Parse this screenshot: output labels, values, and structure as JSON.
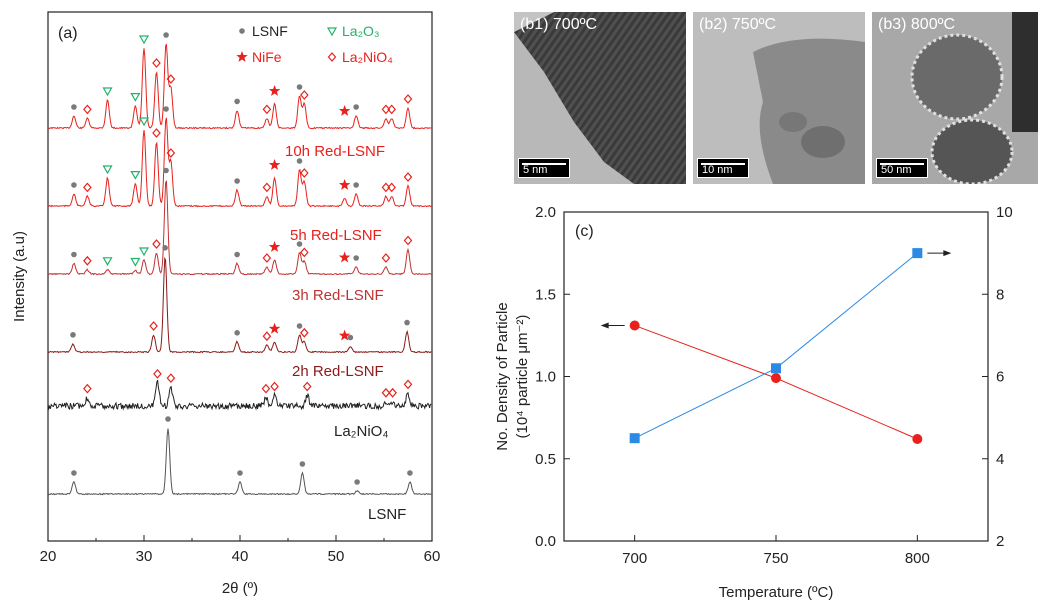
{
  "panel_b": [
    {
      "label": "(b1) 700ºC",
      "scale": "5 nm"
    },
    {
      "label": "(b2) 750ºC",
      "scale": "10 nm"
    },
    {
      "label": "(b3) 800ºC",
      "scale": "50 nm"
    }
  ],
  "colors": {
    "red": "#e8211c",
    "blue": "#2a8ae6",
    "green": "#22b26a",
    "grey": "#7a7a7a",
    "dark_red": "#8b1a1a",
    "black": "#222222"
  },
  "chart_data": [
    {
      "type": "line",
      "panel_label": "(a)",
      "xlabel": "2θ (º)",
      "ylabel": "Intensity (a.u)",
      "xlim": [
        20,
        60
      ],
      "xticks": [
        "20",
        "30",
        "40",
        "50",
        "60"
      ],
      "legend": {
        "placement": "top-right",
        "entries": [
          {
            "marker": "dot",
            "text": "LSNF"
          },
          {
            "marker": "triangle",
            "text": "La₂O₃"
          },
          {
            "marker": "star",
            "text": "NiFe"
          },
          {
            "marker": "diamond",
            "text": "La₂NiO₄"
          }
        ]
      },
      "series": [
        {
          "name": "10h Red-LSNF",
          "color": "#e8211c",
          "offset": 6,
          "peaks": [
            [
              22.7,
              0.15
            ],
            [
              24.1,
              0.12
            ],
            [
              26.2,
              0.35
            ],
            [
              29.1,
              0.28
            ],
            [
              30.0,
              1.0
            ],
            [
              31.3,
              0.7
            ],
            [
              32.3,
              1.05
            ],
            [
              32.8,
              0.5
            ],
            [
              39.7,
              0.22
            ],
            [
              42.8,
              0.12
            ],
            [
              43.6,
              0.3
            ],
            [
              46.2,
              0.4
            ],
            [
              46.7,
              0.3
            ],
            [
              52.1,
              0.15
            ],
            [
              55.2,
              0.12
            ],
            [
              55.8,
              0.12
            ],
            [
              57.5,
              0.25
            ]
          ],
          "markers": [
            [
              "dot",
              22.7
            ],
            [
              "diamond",
              24.1
            ],
            [
              "triangle",
              26.2
            ],
            [
              "triangle",
              29.1
            ],
            [
              "triangle",
              30.0
            ],
            [
              "diamond",
              31.3
            ],
            [
              "dot",
              32.3
            ],
            [
              "diamond",
              32.8
            ],
            [
              "dot",
              39.7
            ],
            [
              "diamond",
              42.8
            ],
            [
              "star",
              43.6
            ],
            [
              "dot",
              46.2
            ],
            [
              "diamond",
              46.7
            ],
            [
              "star",
              50.9
            ],
            [
              "dot",
              52.1
            ],
            [
              "diamond",
              55.2
            ],
            [
              "diamond",
              55.8
            ],
            [
              "diamond",
              57.5
            ]
          ]
        },
        {
          "name": "5h Red-LSNF",
          "color": "#e8211c",
          "offset": 5,
          "peaks": [
            [
              22.7,
              0.15
            ],
            [
              24.1,
              0.12
            ],
            [
              26.2,
              0.35
            ],
            [
              29.1,
              0.28
            ],
            [
              30.0,
              0.95
            ],
            [
              31.3,
              0.8
            ],
            [
              32.3,
              1.1
            ],
            [
              32.8,
              0.55
            ],
            [
              39.7,
              0.2
            ],
            [
              42.8,
              0.12
            ],
            [
              43.6,
              0.35
            ],
            [
              46.2,
              0.45
            ],
            [
              46.7,
              0.3
            ],
            [
              50.9,
              0.1
            ],
            [
              52.1,
              0.15
            ],
            [
              55.2,
              0.12
            ],
            [
              55.8,
              0.12
            ],
            [
              57.5,
              0.25
            ]
          ],
          "markers": [
            [
              "dot",
              22.7
            ],
            [
              "diamond",
              24.1
            ],
            [
              "triangle",
              26.2
            ],
            [
              "triangle",
              29.1
            ],
            [
              "triangle",
              30.0
            ],
            [
              "diamond",
              31.3
            ],
            [
              "dot",
              32.3
            ],
            [
              "diamond",
              32.8
            ],
            [
              "dot",
              39.7
            ],
            [
              "diamond",
              42.8
            ],
            [
              "star",
              43.6
            ],
            [
              "dot",
              46.2
            ],
            [
              "diamond",
              46.7
            ],
            [
              "star",
              50.9
            ],
            [
              "dot",
              52.1
            ],
            [
              "diamond",
              55.2
            ],
            [
              "diamond",
              55.8
            ],
            [
              "diamond",
              57.5
            ]
          ]
        },
        {
          "name": "3h Red-LSNF",
          "color": "#c23131",
          "offset": 4,
          "peaks": [
            [
              22.7,
              0.15
            ],
            [
              24.1,
              0.06
            ],
            [
              26.2,
              0.06
            ],
            [
              29.1,
              0.05
            ],
            [
              30.0,
              0.2
            ],
            [
              31.3,
              0.3
            ],
            [
              32.3,
              1.35
            ],
            [
              39.7,
              0.15
            ],
            [
              42.8,
              0.1
            ],
            [
              43.6,
              0.2
            ],
            [
              46.2,
              0.3
            ],
            [
              46.7,
              0.18
            ],
            [
              52.1,
              0.1
            ],
            [
              55.2,
              0.1
            ],
            [
              57.5,
              0.35
            ]
          ],
          "markers": [
            [
              "dot",
              22.7
            ],
            [
              "diamond",
              24.1
            ],
            [
              "triangle",
              26.2
            ],
            [
              "triangle",
              29.1
            ],
            [
              "triangle",
              30.0
            ],
            [
              "diamond",
              31.3
            ],
            [
              "dot",
              32.3
            ],
            [
              "dot",
              39.7
            ],
            [
              "diamond",
              42.8
            ],
            [
              "star",
              43.6
            ],
            [
              "dot",
              46.2
            ],
            [
              "diamond",
              46.7
            ],
            [
              "star",
              50.9
            ],
            [
              "dot",
              52.1
            ],
            [
              "diamond",
              55.2
            ],
            [
              "diamond",
              57.5
            ]
          ]
        },
        {
          "name": "2h Red-LSNF",
          "color": "#8b1a1a",
          "offset": 3,
          "peaks": [
            [
              22.6,
              0.12
            ],
            [
              31.0,
              0.25
            ],
            [
              32.2,
              1.4
            ],
            [
              39.7,
              0.15
            ],
            [
              42.8,
              0.1
            ],
            [
              43.6,
              0.15
            ],
            [
              46.2,
              0.25
            ],
            [
              46.7,
              0.15
            ],
            [
              51.5,
              0.08
            ],
            [
              57.4,
              0.3
            ]
          ],
          "markers": [
            [
              "dot",
              22.6
            ],
            [
              "diamond",
              31.0
            ],
            [
              "dot",
              32.2
            ],
            [
              "dot",
              39.7
            ],
            [
              "diamond",
              42.8
            ],
            [
              "star",
              43.6
            ],
            [
              "dot",
              46.2
            ],
            [
              "diamond",
              46.7
            ],
            [
              "star",
              50.9
            ],
            [
              "dot",
              51.5
            ],
            [
              "dot",
              57.4
            ]
          ]
        },
        {
          "name": "La₂NiO₄",
          "color": "#222222",
          "offset": 2,
          "noisy": true,
          "peaks": [
            [
              24.1,
              0.2
            ],
            [
              31.4,
              0.55
            ],
            [
              32.8,
              0.45
            ],
            [
              42.7,
              0.2
            ],
            [
              43.6,
              0.25
            ],
            [
              47.0,
              0.25
            ],
            [
              55.2,
              0.1
            ],
            [
              55.9,
              0.1
            ],
            [
              57.5,
              0.3
            ]
          ],
          "markers": [
            [
              "diamond",
              24.1
            ],
            [
              "diamond",
              31.4
            ],
            [
              "diamond",
              32.8
            ],
            [
              "diamond",
              42.7
            ],
            [
              "diamond",
              43.6
            ],
            [
              "diamond",
              47.0
            ],
            [
              "diamond",
              55.2
            ],
            [
              "diamond",
              55.9
            ],
            [
              "diamond",
              57.5
            ]
          ]
        },
        {
          "name": "LSNF",
          "color": "#555555",
          "offset": 1,
          "peaks": [
            [
              22.7,
              0.2
            ],
            [
              32.5,
              1.1
            ],
            [
              40.0,
              0.2
            ],
            [
              46.5,
              0.35
            ],
            [
              52.2,
              0.05
            ],
            [
              57.7,
              0.2
            ]
          ],
          "markers": [
            [
              "dot",
              22.7
            ],
            [
              "dot",
              32.5
            ],
            [
              "dot",
              40.0
            ],
            [
              "dot",
              46.5
            ],
            [
              "dot",
              52.2
            ],
            [
              "dot",
              57.7
            ]
          ]
        }
      ]
    },
    {
      "type": "line",
      "panel_label": "(c)",
      "xlabel": "Temperature (ºC)",
      "ylabel": "No. Density of Particle",
      "ylabel2": "(10⁴ particle μm⁻²)",
      "categories": [
        700,
        750,
        800
      ],
      "xlim": [
        675,
        825
      ],
      "xticks": [
        "700",
        "750",
        "800"
      ],
      "ylim": [
        0,
        2
      ],
      "yticks": [
        "0.0",
        "0.5",
        "1.0",
        "1.5",
        "2.0"
      ],
      "y2lim": [
        2,
        10
      ],
      "y2ticks": [
        "2",
        "4",
        "6",
        "8",
        "10"
      ],
      "grid": false,
      "series": [
        {
          "axis": "left",
          "marker": "circle",
          "color": "#e8211c",
          "values": [
            1.31,
            0.99,
            0.62
          ]
        },
        {
          "axis": "right",
          "marker": "square",
          "color": "#2a8ae6",
          "values": [
            4.5,
            6.2,
            9.0
          ]
        }
      ]
    }
  ]
}
